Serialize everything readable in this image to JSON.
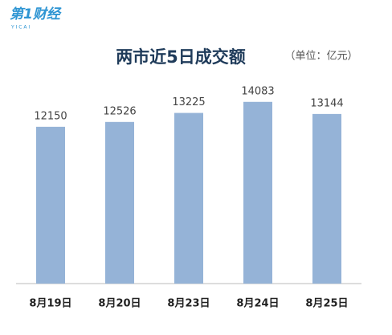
{
  "chart_data": {
    "type": "bar",
    "logo_text": "第1财经",
    "logo_subtext": "Y I C A I",
    "title": "两市近5日成交额",
    "subtitle": "（单位：亿元）",
    "categories": [
      "8月19日",
      "8月20日",
      "8月23日",
      "8月24日",
      "8月25日"
    ],
    "values": [
      12150,
      12526,
      13225,
      14083,
      13144
    ],
    "color": "#95b3d7",
    "ylim": [
      0,
      16000
    ]
  }
}
